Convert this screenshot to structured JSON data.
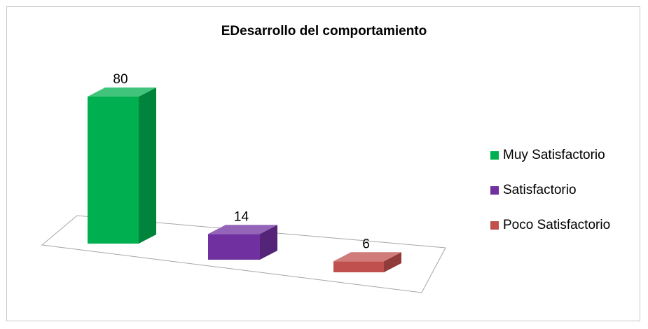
{
  "chart_data": {
    "type": "bar",
    "title": "EDesarrollo del comportamiento",
    "categories": [
      "Muy Satisfactorio",
      "Satisfactorio",
      "Poco Satisfactorio"
    ],
    "values": [
      80,
      14,
      6
    ],
    "data_labels": [
      "80",
      "14",
      "6"
    ],
    "colors": [
      "#00b050",
      "#7030a0",
      "#c0504d"
    ],
    "three_d": true,
    "legend": {
      "position": "right",
      "entries": [
        "Muy Satisfactorio",
        "Satisfactorio",
        "Poco Satisfactorio"
      ]
    },
    "ylim": [
      0,
      80
    ],
    "grid": false
  }
}
